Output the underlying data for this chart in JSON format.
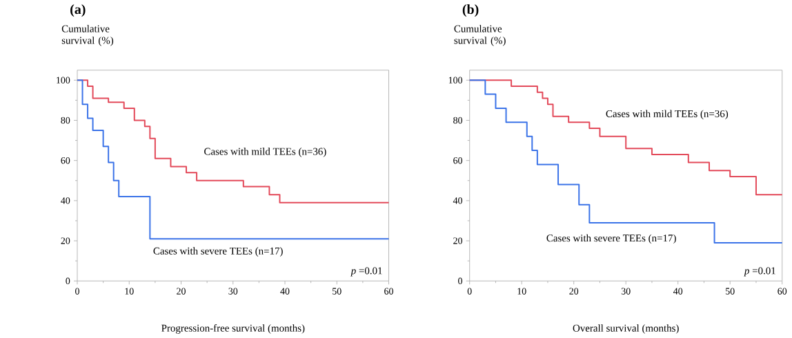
{
  "chart_data": [
    {
      "type": "step",
      "title": "(a)",
      "ylabel": "Cumulative survival (%)",
      "xlabel": "Progression-free survival (months)",
      "xlim": [
        0,
        60
      ],
      "ylim": [
        0,
        105
      ],
      "xticks": [
        0,
        10,
        20,
        30,
        40,
        50,
        60
      ],
      "yticks": [
        0,
        20,
        40,
        60,
        80,
        100
      ],
      "annotations": [
        "*p* =0.01"
      ],
      "series": [
        {
          "name": "Cases with mild TEEs   (n=36)",
          "color": "#e34a5a",
          "x": [
            0,
            2,
            3,
            6,
            9,
            11,
            13,
            14,
            15,
            18,
            21,
            23,
            32,
            37,
            39,
            60
          ],
          "values": [
            100,
            97,
            91,
            89,
            86,
            80,
            77,
            71,
            61,
            57,
            54,
            50,
            47,
            43,
            39,
            39
          ]
        },
        {
          "name": "Cases with severe TEEs   (n=17)",
          "color": "#3b73e8",
          "x": [
            0,
            1,
            2,
            3,
            5,
            6,
            7,
            8,
            14,
            60
          ],
          "values": [
            100,
            88,
            81,
            75,
            67,
            59,
            50,
            42,
            21,
            21
          ]
        }
      ]
    },
    {
      "type": "step",
      "title": "(b)",
      "ylabel": "Cumulative survival (%)",
      "xlabel": "Overall survival (months)",
      "xlim": [
        0,
        60
      ],
      "ylim": [
        0,
        105
      ],
      "xticks": [
        0,
        10,
        20,
        30,
        40,
        50,
        60
      ],
      "yticks": [
        0,
        20,
        40,
        60,
        80,
        100
      ],
      "annotations": [
        "*p* =0.01"
      ],
      "series": [
        {
          "name": "Cases with mild TEEs   (n=36)",
          "color": "#e34a5a",
          "x": [
            0,
            8,
            13,
            14,
            15,
            16,
            19,
            23,
            25,
            30,
            35,
            42,
            46,
            50,
            55,
            60
          ],
          "values": [
            100,
            97,
            94,
            91,
            88,
            82,
            79,
            76,
            72,
            66,
            63,
            59,
            55,
            52,
            43,
            43
          ]
        },
        {
          "name": "Cases with severe TEEs   (n=17)",
          "color": "#3b73e8",
          "x": [
            0,
            3,
            5,
            7,
            11,
            12,
            13,
            17,
            21,
            23,
            47,
            60
          ],
          "values": [
            100,
            93,
            86,
            79,
            72,
            65,
            58,
            48,
            38,
            29,
            19,
            19
          ]
        }
      ]
    }
  ]
}
